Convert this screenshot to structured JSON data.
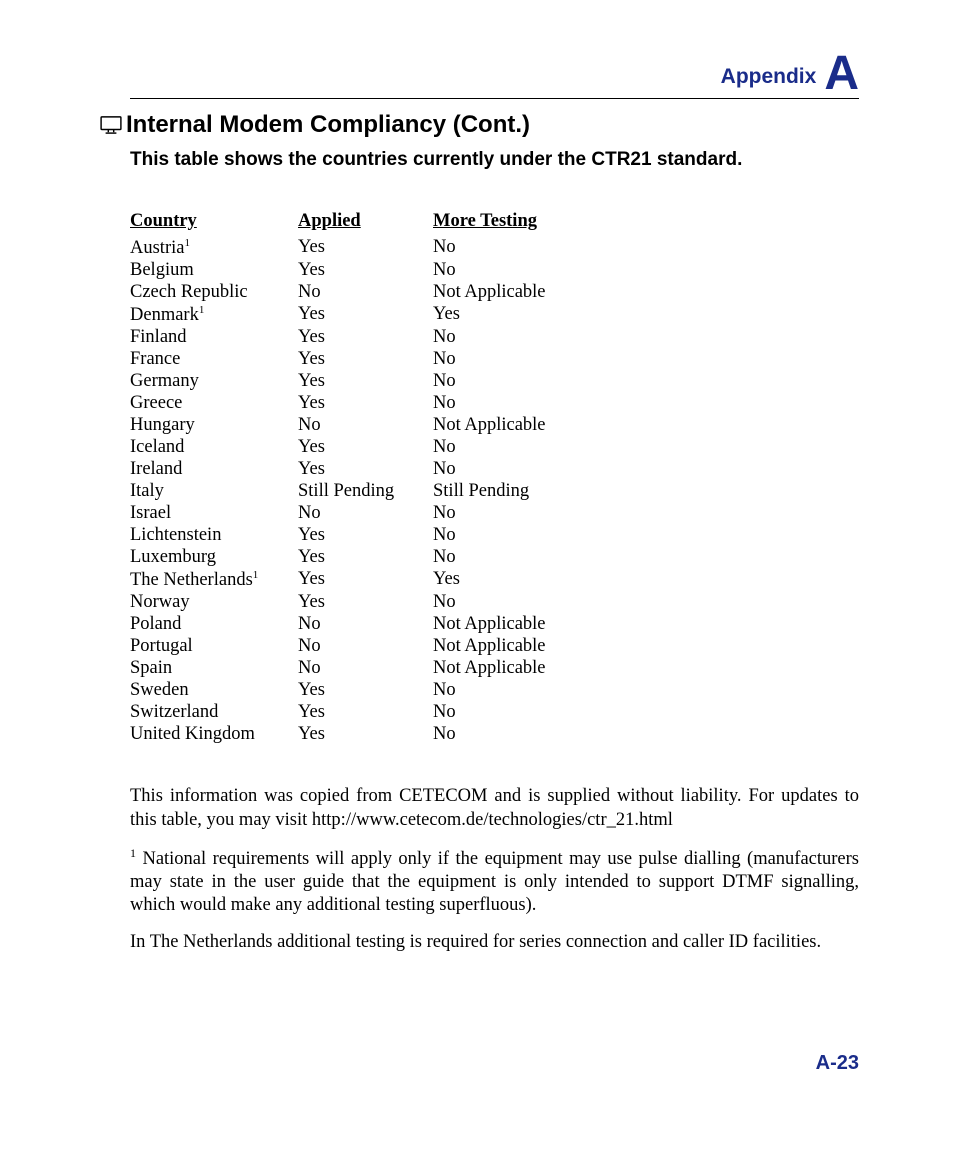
{
  "header": {
    "appendix_label": "Appendix",
    "appendix_letter": "A"
  },
  "title": "Internal Modem Compliancy (Cont.)",
  "subtitle": "This table shows the countries currently under the CTR21 standard.",
  "table": {
    "headers": {
      "country": "Country",
      "applied": "Applied",
      "more": "More Testing"
    },
    "rows": [
      {
        "country": "Austria",
        "sup": "1",
        "applied": "Yes",
        "more": "No"
      },
      {
        "country": "Belgium",
        "sup": "",
        "applied": "Yes",
        "more": "No"
      },
      {
        "country": "Czech Republic",
        "sup": "",
        "applied": "No",
        "more": "Not Applicable"
      },
      {
        "country": "Denmark",
        "sup": "1",
        "applied": "Yes",
        "more": "Yes"
      },
      {
        "country": "Finland",
        "sup": "",
        "applied": "Yes",
        "more": "No"
      },
      {
        "country": "France",
        "sup": "",
        "applied": "Yes",
        "more": "No"
      },
      {
        "country": "Germany",
        "sup": "",
        "applied": "Yes",
        "more": "No"
      },
      {
        "country": "Greece",
        "sup": "",
        "applied": "Yes",
        "more": "No"
      },
      {
        "country": "Hungary",
        "sup": "",
        "applied": "No",
        "more": "Not Applicable"
      },
      {
        "country": "Iceland",
        "sup": "",
        "applied": "Yes",
        "more": "No"
      },
      {
        "country": "Ireland",
        "sup": "",
        "applied": "Yes",
        "more": "No"
      },
      {
        "country": "Italy",
        "sup": "",
        "applied": "Still Pending",
        "more": "Still Pending"
      },
      {
        "country": "Israel",
        "sup": "",
        "applied": "No",
        "more": "No"
      },
      {
        "country": "Lichtenstein",
        "sup": "",
        "applied": "Yes",
        "more": "No"
      },
      {
        "country": "Luxemburg",
        "sup": "",
        "applied": "Yes",
        "more": "No"
      },
      {
        "country": "The Netherlands",
        "sup": "1",
        "applied": "Yes",
        "more": "Yes"
      },
      {
        "country": "Norway",
        "sup": "",
        "applied": "Yes",
        "more": "No"
      },
      {
        "country": "Poland",
        "sup": "",
        "applied": "No",
        "more": "Not Applicable"
      },
      {
        "country": "Portugal",
        "sup": "",
        "applied": "No",
        "more": "Not Applicable"
      },
      {
        "country": "Spain",
        "sup": "",
        "applied": "No",
        "more": "Not Applicable"
      },
      {
        "country": "Sweden",
        "sup": "",
        "applied": "Yes",
        "more": "No"
      },
      {
        "country": "Switzerland",
        "sup": "",
        "applied": "Yes",
        "more": "No"
      },
      {
        "country": "United Kingdom",
        "sup": "",
        "applied": "Yes",
        "more": "No"
      }
    ]
  },
  "paragraphs": {
    "p1": "This information was copied from CETECOM and is supplied without liability. For updates to this table, you may visit http://www.cetecom.de/technologies/ctr_21.html",
    "p2_sup": "1",
    "p2": " National requirements will apply only if the equipment may use pulse dialling (manufacturers may state in the user guide that the equipment is only intended to support DTMF signalling, which would make any additional testing superfluous).",
    "p3": "In The Netherlands additional testing is required for series connection and caller ID facilities."
  },
  "page_number": "A-23",
  "colors": {
    "brand": "#1a2c8a",
    "text": "#000000",
    "bg": "#ffffff"
  }
}
